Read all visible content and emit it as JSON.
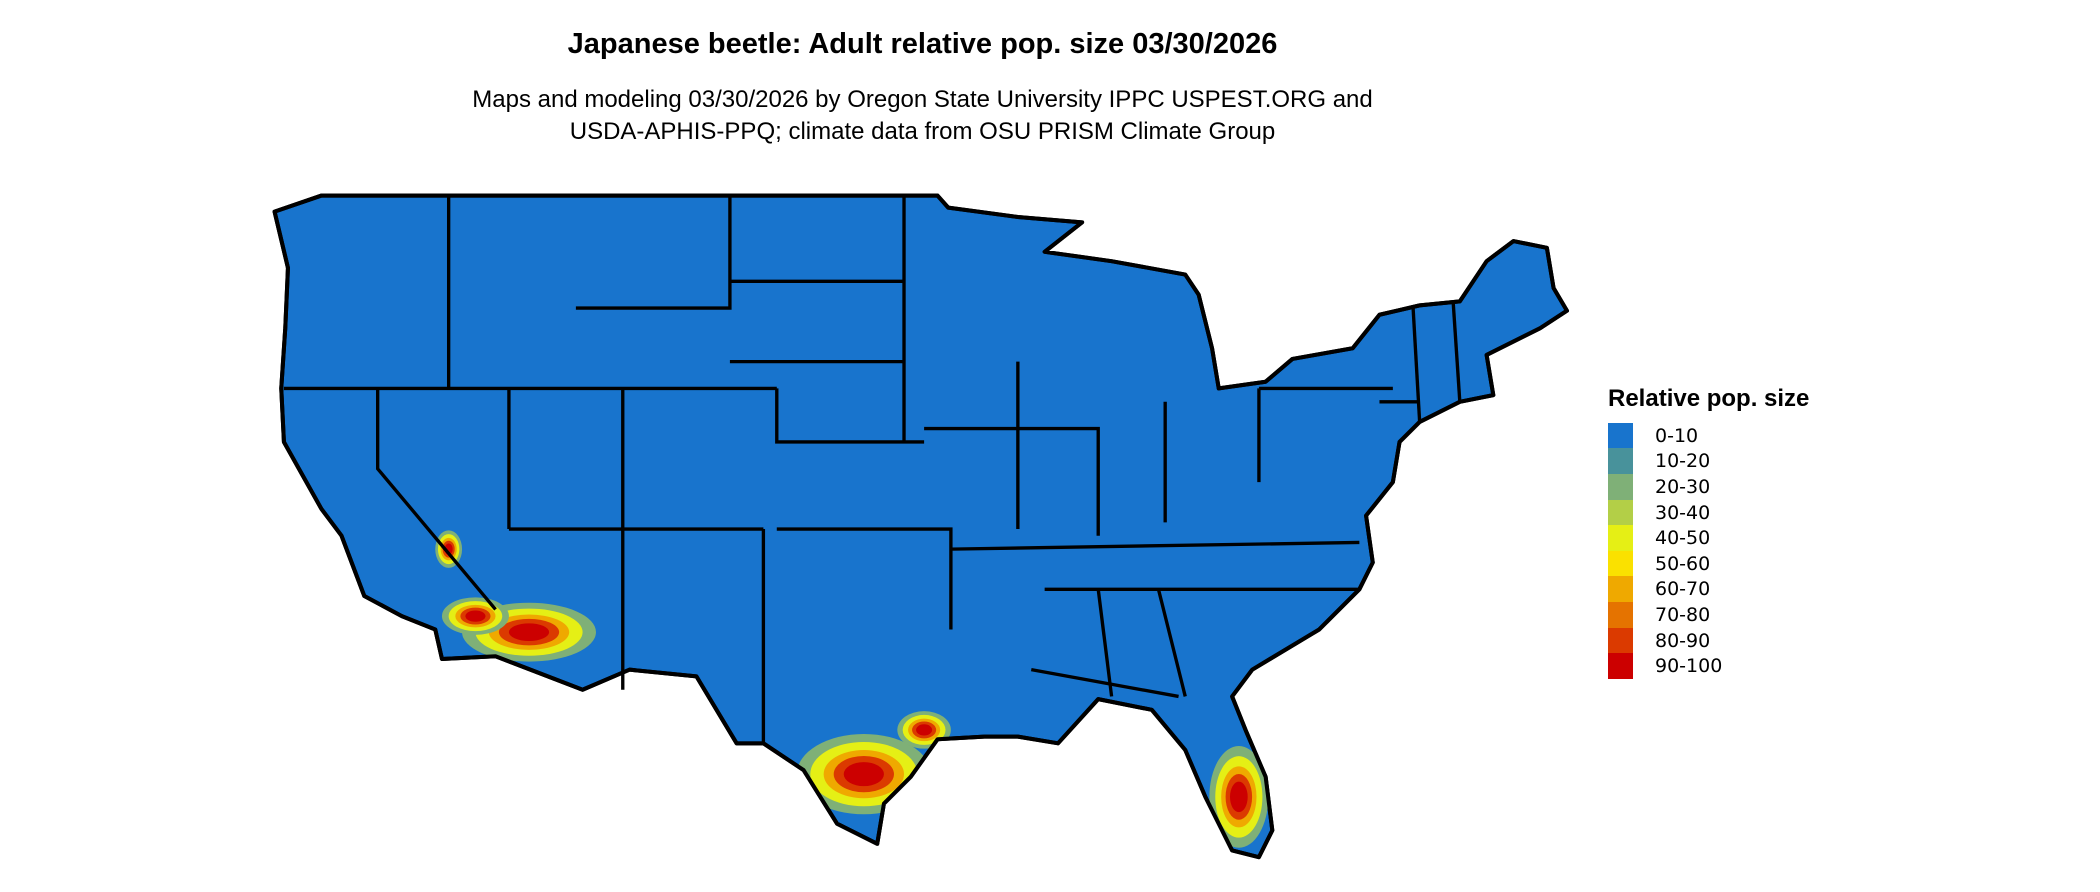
{
  "title": "Japanese beetle: Adult relative pop. size 03/30/2026",
  "subtitle_line1": "Maps and modeling 03/30/2026 by Oregon State University IPPC USPEST.ORG and",
  "subtitle_line2": "USDA-APHIS-PPQ; climate data from OSU PRISM Climate Group",
  "map": {
    "region": "Contiguous United States",
    "base_color": "#1874CD",
    "border_color": "#000000",
    "hotspots": [
      "southern Arizona / southeastern California deserts",
      "southern Texas",
      "southern Florida peninsula"
    ]
  },
  "legend": {
    "title": "Relative pop. size",
    "items": [
      {
        "label": "0-10",
        "color": "#1874CD"
      },
      {
        "label": "10-20",
        "color": "#48929B"
      },
      {
        "label": "20-30",
        "color": "#7FB077"
      },
      {
        "label": "30-40",
        "color": "#B3CF47"
      },
      {
        "label": "40-50",
        "color": "#E5EF15"
      },
      {
        "label": "50-60",
        "color": "#FAE100"
      },
      {
        "label": "60-70",
        "color": "#EFA900"
      },
      {
        "label": "70-80",
        "color": "#E57300"
      },
      {
        "label": "80-90",
        "color": "#DB3A00"
      },
      {
        "label": "90-100",
        "color": "#CC0000"
      }
    ]
  }
}
